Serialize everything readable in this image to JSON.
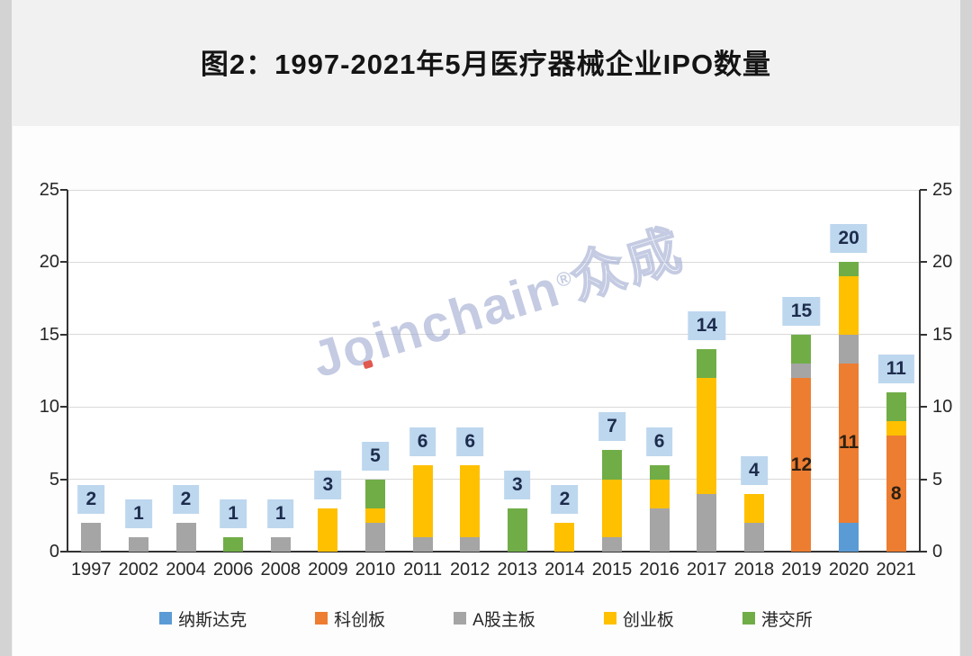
{
  "page": {
    "title": "图2：1997-2021年5月医疗器械企业IPO数量"
  },
  "watermark": {
    "brand": "Joinchain",
    "reg": "®",
    "suffix": "众成"
  },
  "chart_data": {
    "type": "bar",
    "stacked": true,
    "title": "图2：1997-2021年5月医疗器械企业IPO数量",
    "xlabel": "",
    "ylabel": "",
    "ylim": [
      0,
      25
    ],
    "yticks": [
      0,
      5,
      10,
      15,
      20,
      25
    ],
    "grid": true,
    "legend_position": "bottom",
    "dual_y_axis": true,
    "categories": [
      "1997",
      "2002",
      "2004",
      "2006",
      "2008",
      "2009",
      "2010",
      "2011",
      "2012",
      "2013",
      "2014",
      "2015",
      "2016",
      "2017",
      "2018",
      "2019",
      "2020",
      "2021"
    ],
    "series": [
      {
        "name": "纳斯达克",
        "color": "#5B9BD5",
        "values": [
          0,
          0,
          0,
          0,
          0,
          0,
          0,
          0,
          0,
          0,
          0,
          0,
          0,
          0,
          0,
          0,
          2,
          0
        ]
      },
      {
        "name": "科创板",
        "color": "#ED7D31",
        "values": [
          0,
          0,
          0,
          0,
          0,
          0,
          0,
          0,
          0,
          0,
          0,
          0,
          0,
          0,
          0,
          12,
          11,
          8
        ]
      },
      {
        "name": "A股主板",
        "color": "#A5A5A5",
        "values": [
          2,
          1,
          2,
          0,
          1,
          0,
          2,
          1,
          1,
          0,
          0,
          1,
          3,
          4,
          2,
          1,
          2,
          0
        ]
      },
      {
        "name": "创业板",
        "color": "#FFC000",
        "values": [
          0,
          0,
          0,
          0,
          0,
          3,
          1,
          5,
          5,
          0,
          2,
          4,
          2,
          8,
          2,
          0,
          4,
          1
        ]
      },
      {
        "name": "港交所",
        "color": "#70AD47",
        "values": [
          0,
          0,
          0,
          1,
          0,
          0,
          2,
          0,
          0,
          3,
          0,
          2,
          1,
          2,
          0,
          2,
          1,
          2
        ]
      }
    ],
    "totals": [
      2,
      1,
      2,
      1,
      1,
      3,
      5,
      6,
      6,
      3,
      2,
      7,
      6,
      14,
      4,
      15,
      20,
      11
    ],
    "segment_labels": [
      {
        "category": "2019",
        "series": "科创板",
        "value": 12
      },
      {
        "category": "2020",
        "series": "科创板",
        "value": 11
      },
      {
        "category": "2021",
        "series": "科创板",
        "value": 8
      }
    ],
    "total_label_bg": "#BDD7EE",
    "total_label_color": "#1d2c4d"
  }
}
